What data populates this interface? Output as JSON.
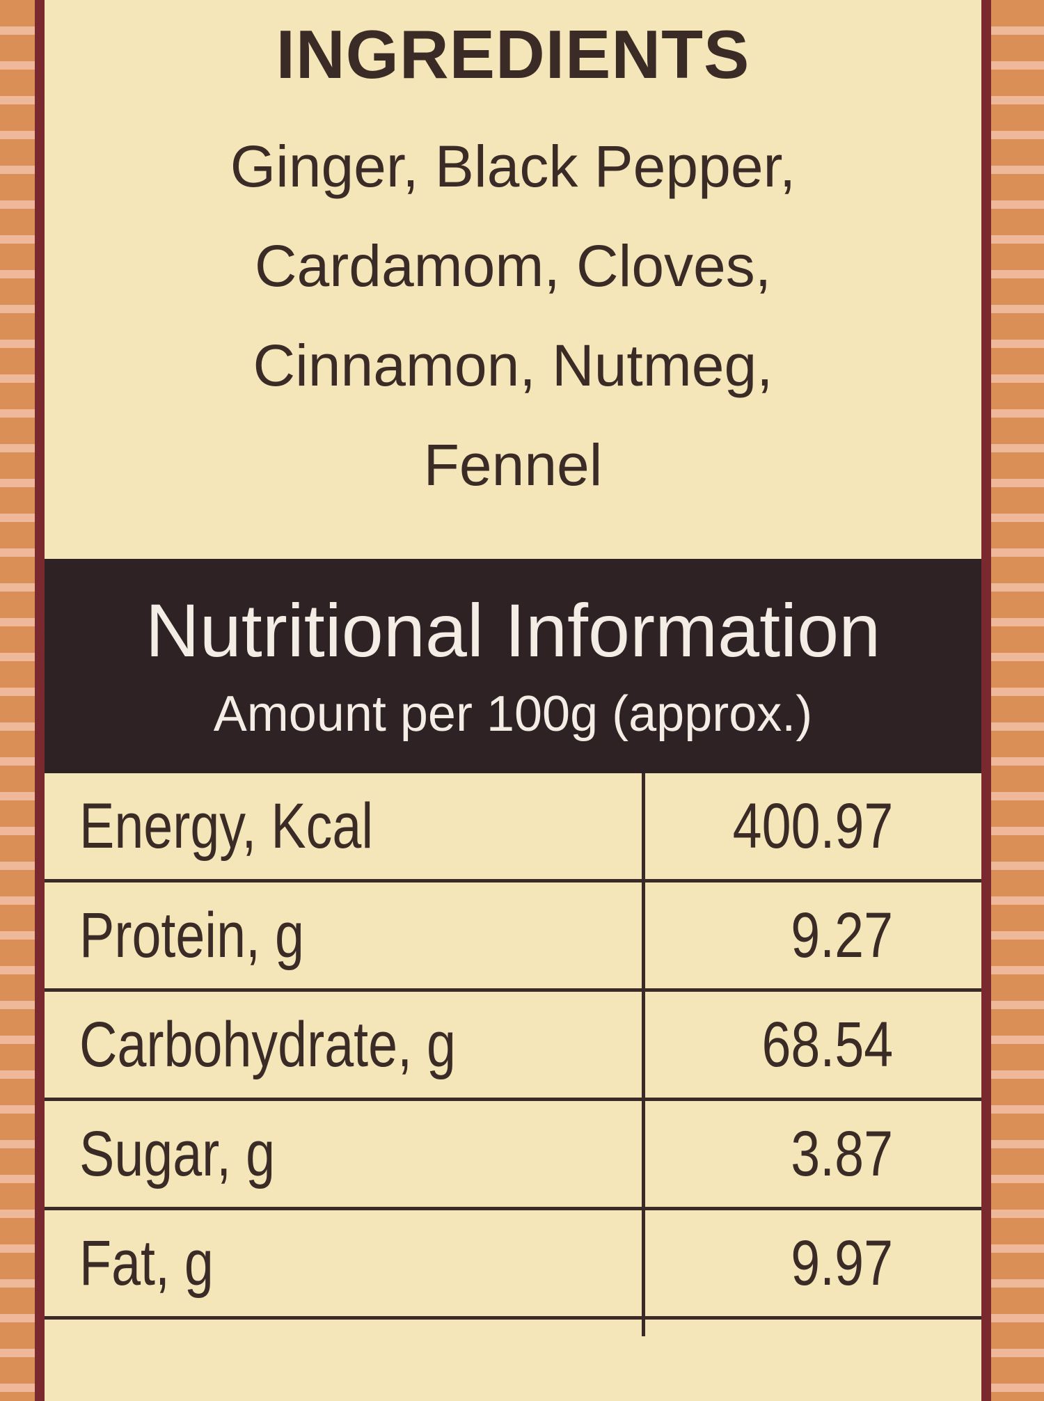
{
  "ingredients": {
    "title": "INGREDIENTS",
    "lines": [
      "Ginger, Black Pepper,",
      "Cardamom, Cloves,",
      "Cinnamon, Nutmeg,",
      "Fennel"
    ]
  },
  "nutrition": {
    "title": "Nutritional Information",
    "subtitle": "Amount per 100g (approx.)",
    "rows": [
      {
        "label": "Energy, Kcal",
        "value": "400.97"
      },
      {
        "label": "Protein, g",
        "value": "9.27"
      },
      {
        "label": "Carbohydrate, g",
        "value": "68.54"
      },
      {
        "label": "Sugar, g",
        "value": "3.87"
      },
      {
        "label": "Fat, g",
        "value": "9.97"
      }
    ]
  },
  "colors": {
    "panel": "#f4e6b8",
    "band": "#2f2224",
    "border": "#7a2a2e",
    "stripe": "#d98f55"
  }
}
